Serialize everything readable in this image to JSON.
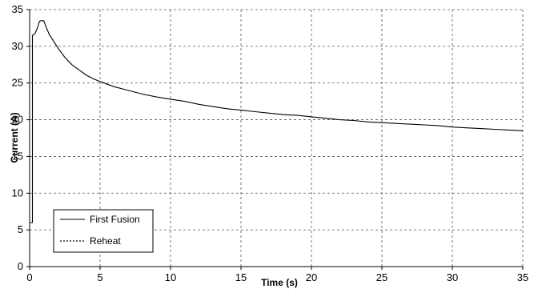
{
  "chart_data": {
    "type": "line",
    "xlabel": "Time (s)",
    "ylabel": "Current (A)",
    "xlim": [
      0,
      35
    ],
    "ylim": [
      0,
      35
    ],
    "x_ticks": [
      0,
      5,
      10,
      15,
      20,
      25,
      30,
      35
    ],
    "y_ticks": [
      0,
      5,
      10,
      15,
      20,
      25,
      30,
      35
    ],
    "grid": "dashed",
    "legend_position": "bottom-left",
    "series": [
      {
        "name": "First Fusion",
        "color": "#000000",
        "dash": "solid",
        "x": [
          0,
          0.2,
          0.2,
          0.3,
          0.4,
          0.55,
          0.7,
          0.8,
          1.0,
          1.2,
          1.4,
          1.6,
          1.8,
          2,
          2.5,
          3,
          3.5,
          4,
          4.5,
          5,
          6,
          7,
          8,
          9,
          10,
          11,
          12,
          13,
          14,
          15,
          16,
          17,
          18,
          19,
          20,
          21,
          22,
          23,
          24,
          25,
          26,
          27,
          28,
          29,
          30,
          31,
          32,
          33,
          34,
          35
        ],
        "y": [
          6,
          6,
          31.5,
          31.6,
          31.8,
          32.5,
          33.4,
          33.5,
          33.5,
          32.5,
          31.6,
          31.0,
          30.4,
          29.8,
          28.5,
          27.5,
          26.8,
          26.1,
          25.6,
          25.2,
          24.5,
          24.0,
          23.5,
          23.1,
          22.8,
          22.5,
          22.1,
          21.8,
          21.5,
          21.3,
          21.1,
          20.9,
          20.7,
          20.6,
          20.4,
          20.2,
          20.0,
          19.9,
          19.7,
          19.6,
          19.5,
          19.4,
          19.3,
          19.2,
          19.0,
          18.9,
          18.8,
          18.7,
          18.6,
          18.5
        ]
      },
      {
        "name": "Reheat",
        "color": "#000000",
        "dash": "dotted",
        "x": [],
        "y": []
      }
    ]
  }
}
